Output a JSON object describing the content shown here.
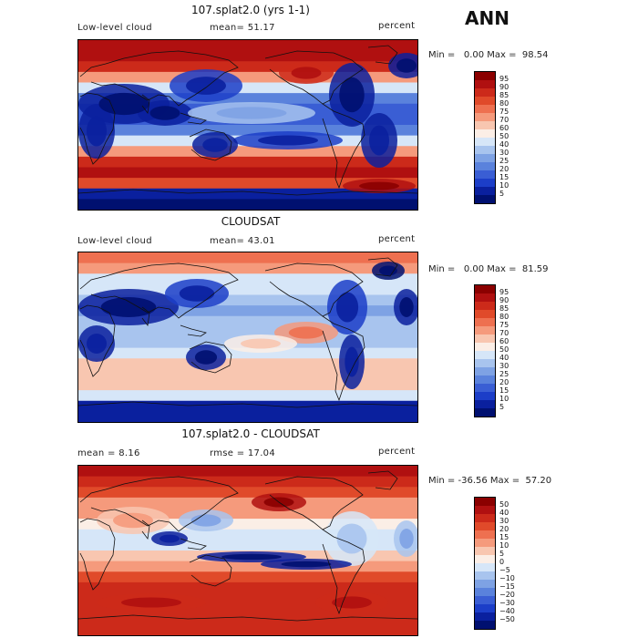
{
  "season": "ANN",
  "panels": [
    {
      "title": "107.splat2.0 (yrs 1-1)",
      "left_label": "Low-level cloud",
      "mid_label": "mean=  51.17",
      "right_label": "percent",
      "minmax": "Min =   0.00 Max =  98.54",
      "kind": "model"
    },
    {
      "title": "CLOUDSAT",
      "left_label": "Low-level cloud",
      "mid_label": "mean=  43.01",
      "right_label": "percent",
      "minmax": "Min =   0.00 Max =  81.59",
      "kind": "obs"
    },
    {
      "title": "107.splat2.0 - CLOUDSAT",
      "left_label": "mean =   8.16",
      "mid_label": "rmse =  17.04",
      "right_label": "percent",
      "minmax": "Min = -36.56 Max =  57.20",
      "kind": "diff"
    }
  ],
  "colorbar_abs": {
    "labels": [
      "95",
      "90",
      "85",
      "80",
      "75",
      "70",
      "60",
      "50",
      "40",
      "30",
      "25",
      "20",
      "15",
      "10",
      "5"
    ],
    "colors": [
      "#8b0000",
      "#b01010",
      "#cc2a1a",
      "#e04a2a",
      "#ee7050",
      "#f59a7c",
      "#f8c6b0",
      "#fbeee6",
      "#d6e6f8",
      "#a8c4ee",
      "#7ea2e4",
      "#5a82dc",
      "#3a5ed4",
      "#1c3ec8",
      "#0a209e",
      "#001070"
    ]
  },
  "colorbar_diff": {
    "labels": [
      "50",
      "40",
      "30",
      "20",
      "15",
      "10",
      "5",
      "0",
      "−5",
      "−10",
      "−15",
      "−20",
      "−30",
      "−40",
      "−50"
    ],
    "colors": [
      "#8b0000",
      "#b01010",
      "#cc2a1a",
      "#e04a2a",
      "#ee7050",
      "#f59a7c",
      "#f8c6b0",
      "#fbeee6",
      "#d6e6f8",
      "#a8c4ee",
      "#7ea2e4",
      "#5a82dc",
      "#3a5ed4",
      "#1c3ec8",
      "#0a209e",
      "#001070"
    ]
  }
}
